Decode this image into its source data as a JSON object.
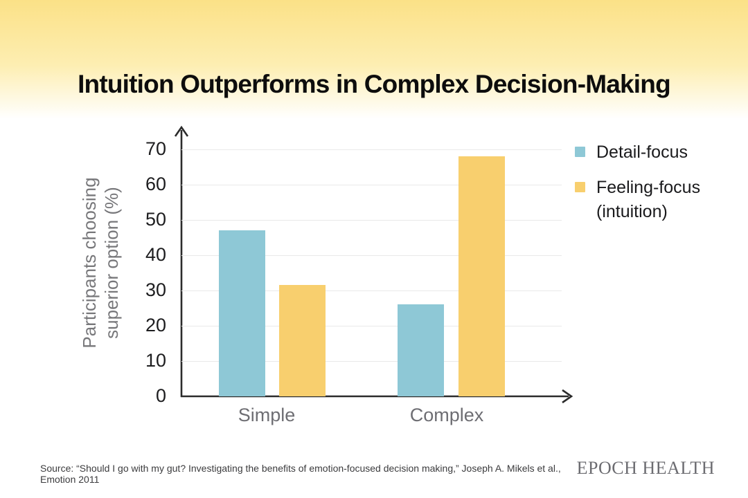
{
  "page": {
    "title": "Intuition Outperforms in Complex Decision-Making",
    "source": "Source: “Should I go with my gut? Investigating the benefits of emotion-focused decision making,” Joseph A. Mikels et al., Emotion 2011",
    "brand": "EPOCH HEALTH"
  },
  "chart_data": {
    "type": "bar",
    "title": "Intuition Outperforms in Complex Decision-Making",
    "categories": [
      "Simple",
      "Complex"
    ],
    "series": [
      {
        "name": "Detail-focus",
        "color": "#8ec8d6",
        "values": [
          47,
          26
        ]
      },
      {
        "name": "Feeling-focus (intuition)",
        "color": "#f8cf6e",
        "values": [
          31.5,
          68
        ]
      }
    ],
    "legend": [
      {
        "label_lines": [
          "Detail-focus"
        ],
        "color": "#8ec8d6"
      },
      {
        "label_lines": [
          "Feeling-focus",
          "(intuition)"
        ],
        "color": "#f8cf6e"
      }
    ],
    "xlabel": "",
    "ylabel": "Participants choosing superior option (%)",
    "ylabel_lines": [
      "Participants choosing",
      "superior option (%)"
    ],
    "ylim": [
      0,
      70
    ],
    "ytick_step": 10,
    "grid": "horizontal",
    "legend_position": "right"
  },
  "colors": {
    "detail_focus": "#8ec8d6",
    "feeling_focus": "#f8cf6e",
    "axis": "#2b2b2b",
    "gridline": "#e9e9e9",
    "muted_text": "#6e6e73",
    "header_gradient_top": "#fbe187"
  }
}
